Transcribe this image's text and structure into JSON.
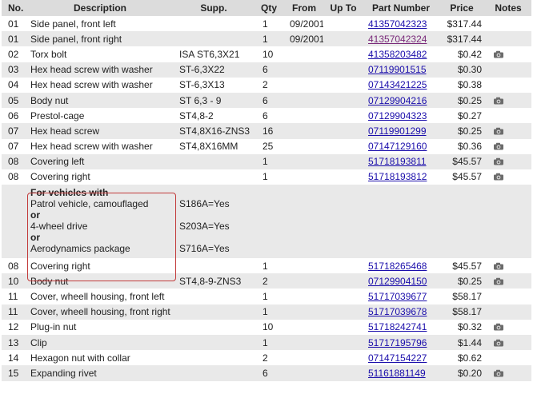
{
  "headers": [
    "No.",
    "Description",
    "Supp.",
    "Qty",
    "From",
    "Up To",
    "Part Number",
    "Price",
    "Notes"
  ],
  "rows": [
    {
      "no": "01",
      "desc": "Side panel, front left",
      "supp": "",
      "qty": "1",
      "from": "09/2001",
      "upto": "",
      "part": "41357042323",
      "price": "$317.44",
      "cam": false,
      "visited": false
    },
    {
      "no": "01",
      "desc": "Side panel, front right",
      "supp": "",
      "qty": "1",
      "from": "09/2001",
      "upto": "",
      "part": "41357042324",
      "price": "$317.44",
      "cam": false,
      "visited": true
    },
    {
      "no": "02",
      "desc": "Torx bolt",
      "supp": "ISA ST6,3X21",
      "qty": "10",
      "from": "",
      "upto": "",
      "part": "41358203482",
      "price": "$0.42",
      "cam": true,
      "visited": false
    },
    {
      "no": "03",
      "desc": "Hex head screw with washer",
      "supp": "ST-6,3X22",
      "qty": "6",
      "from": "",
      "upto": "",
      "part": "07119901515",
      "price": "$0.30",
      "cam": false,
      "visited": false
    },
    {
      "no": "04",
      "desc": "Hex head screw with washer",
      "supp": "ST-6,3X13",
      "qty": "2",
      "from": "",
      "upto": "",
      "part": "07143421225",
      "price": "$0.38",
      "cam": false,
      "visited": false
    },
    {
      "no": "05",
      "desc": "Body nut",
      "supp": "ST 6,3 - 9",
      "qty": "6",
      "from": "",
      "upto": "",
      "part": "07129904216",
      "price": "$0.25",
      "cam": true,
      "visited": false
    },
    {
      "no": "06",
      "desc": "Prestol-cage",
      "supp": "ST4,8-2",
      "qty": "6",
      "from": "",
      "upto": "",
      "part": "07129904323",
      "price": "$0.27",
      "cam": false,
      "visited": false
    },
    {
      "no": "07",
      "desc": "Hex head screw",
      "supp": "ST4,8X16-ZNS3",
      "qty": "16",
      "from": "",
      "upto": "",
      "part": "07119901299",
      "price": "$0.25",
      "cam": true,
      "visited": false
    },
    {
      "no": "07",
      "desc": "Hex head screw with washer",
      "supp": "ST4,8X16MM",
      "qty": "25",
      "from": "",
      "upto": "",
      "part": "07147129160",
      "price": "$0.36",
      "cam": true,
      "visited": false
    },
    {
      "no": "08",
      "desc": "Covering left",
      "supp": "",
      "qty": "1",
      "from": "",
      "upto": "",
      "part": "51718193811",
      "price": "$45.57",
      "cam": true,
      "visited": false
    },
    {
      "no": "08",
      "desc": "Covering right",
      "supp": "",
      "qty": "1",
      "from": "",
      "upto": "",
      "part": "51718193812",
      "price": "$45.57",
      "cam": true,
      "visited": false
    }
  ],
  "condition": {
    "title": "For vehicles with",
    "lines": [
      {
        "text": "Patrol vehicle, camouflaged",
        "code": "S186A=Yes"
      },
      {
        "text": "or",
        "code": ""
      },
      {
        "text": "4-wheel drive",
        "code": "S203A=Yes"
      },
      {
        "text": "or",
        "code": ""
      },
      {
        "text": "Aerodynamics package",
        "code": "S716A=Yes"
      }
    ]
  },
  "rows2": [
    {
      "no": "08",
      "desc": "Covering right",
      "supp": "",
      "qty": "1",
      "from": "",
      "upto": "",
      "part": "51718265468",
      "price": "$45.57",
      "cam": true,
      "visited": false
    },
    {
      "no": "10",
      "desc": "Body nut",
      "supp": "ST4,8-9-ZNS3",
      "qty": "2",
      "from": "",
      "upto": "",
      "part": "07129904150",
      "price": "$0.25",
      "cam": true,
      "visited": false
    },
    {
      "no": "11",
      "desc": "Cover, wheell housing, front left",
      "supp": "",
      "qty": "1",
      "from": "",
      "upto": "",
      "part": "51717039677",
      "price": "$58.17",
      "cam": false,
      "visited": false
    },
    {
      "no": "11",
      "desc": "Cover, wheell housing, front right",
      "supp": "",
      "qty": "1",
      "from": "",
      "upto": "",
      "part": "51717039678",
      "price": "$58.17",
      "cam": false,
      "visited": false
    },
    {
      "no": "12",
      "desc": "Plug-in nut",
      "supp": "",
      "qty": "10",
      "from": "",
      "upto": "",
      "part": "51718242741",
      "price": "$0.32",
      "cam": true,
      "visited": false
    },
    {
      "no": "13",
      "desc": "Clip",
      "supp": "",
      "qty": "1",
      "from": "",
      "upto": "",
      "part": "51717195796",
      "price": "$1.44",
      "cam": true,
      "visited": false
    },
    {
      "no": "14",
      "desc": "Hexagon nut with collar",
      "supp": "",
      "qty": "2",
      "from": "",
      "upto": "",
      "part": "07147154227",
      "price": "$0.62",
      "cam": false,
      "visited": false
    },
    {
      "no": "15",
      "desc": "Expanding rivet",
      "supp": "",
      "qty": "6",
      "from": "",
      "upto": "",
      "part": "51161881149",
      "price": "$0.20",
      "cam": true,
      "visited": false
    }
  ],
  "icons": {
    "camera": "camera-icon"
  },
  "colors": {
    "header_bg": "#dcdcdc",
    "alt_row_bg": "#e9e9e9",
    "link": "#1a0dab",
    "visited_link": "#7a2a7a",
    "condition_border": "#c23a3a"
  }
}
